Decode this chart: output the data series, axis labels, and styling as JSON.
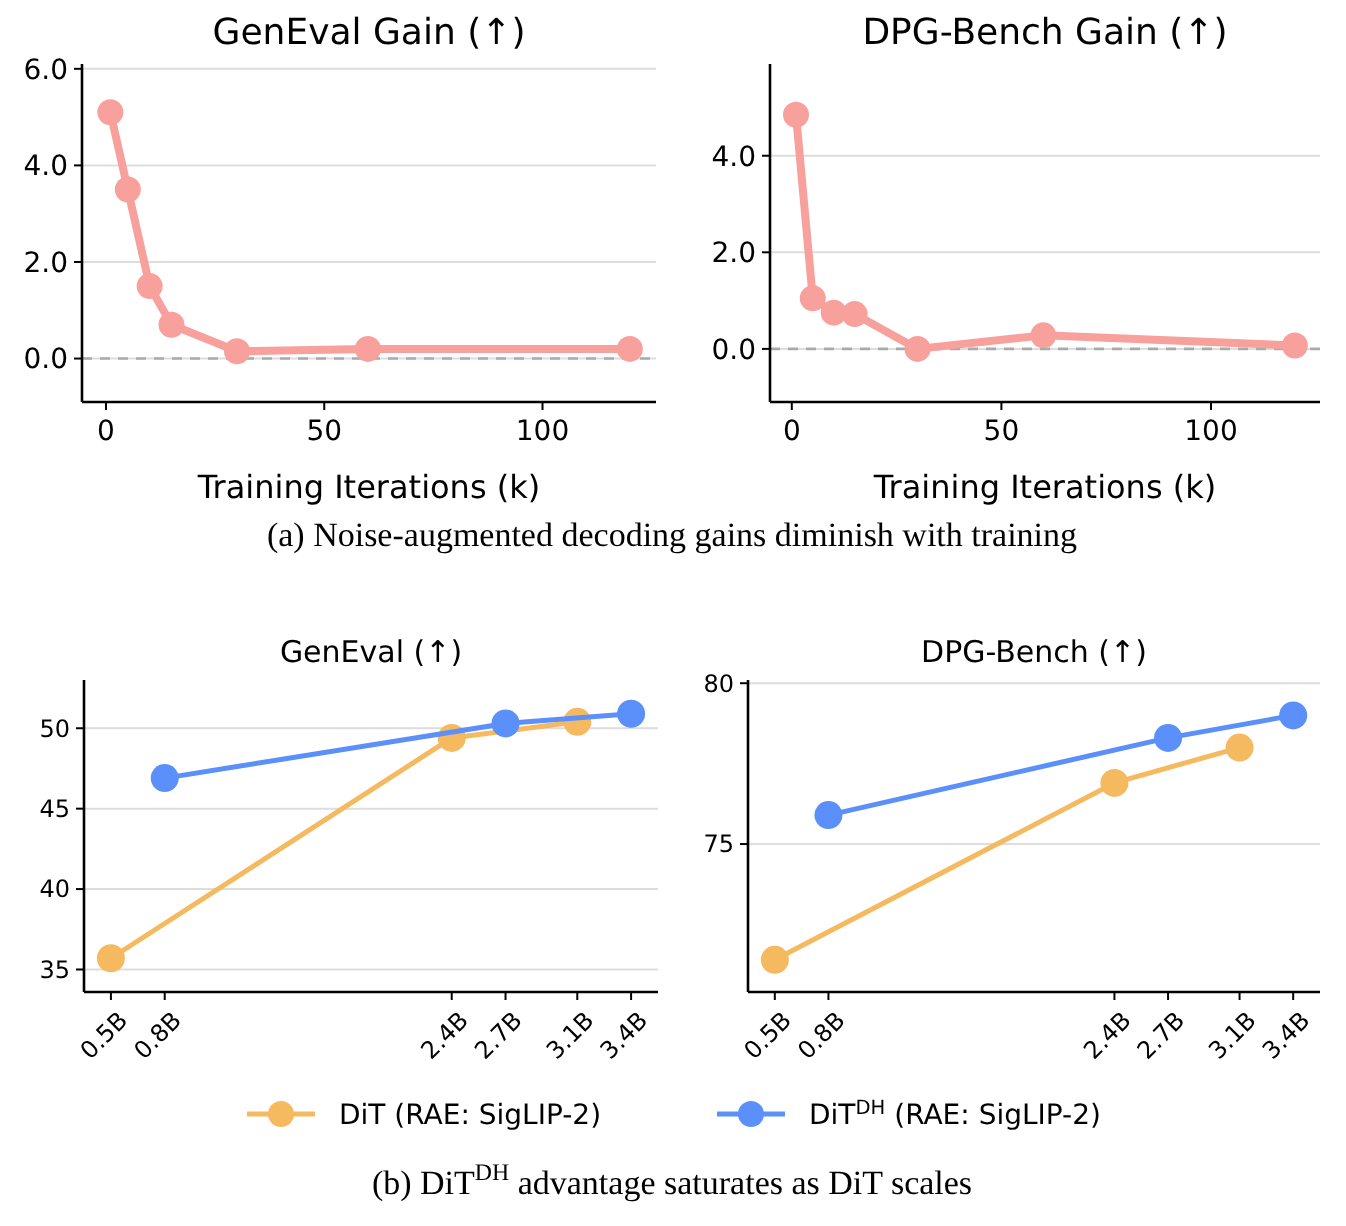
{
  "chart_data": [
    {
      "type": "line",
      "title": "GenEval Gain (↑)",
      "xlabel": "Training Iterations (k)",
      "annotations": [
        "(a) Noise-augmented decoding gains diminish with training"
      ],
      "xlim": [
        -5.5,
        126
      ],
      "xticks": [
        0,
        50,
        100
      ],
      "ylim": [
        -0.9,
        6.1
      ],
      "yticks": [
        {
          "value": 0,
          "label": "0.0"
        },
        {
          "value": 2,
          "label": "2.0"
        },
        {
          "value": 4,
          "label": "4.0"
        },
        {
          "value": 6,
          "label": "6.0"
        }
      ],
      "grid": "y",
      "marker": "circle",
      "line_style": "solid",
      "ref_lines": [
        {
          "axis": "y",
          "value": 0,
          "color": "#aaaaaa",
          "line_style": "dashed"
        }
      ],
      "series": [
        {
          "color": "#f7a09c",
          "x": [
            1,
            5,
            10,
            15,
            30,
            60,
            120
          ],
          "values": [
            5.1,
            3.5,
            1.5,
            0.7,
            0.15,
            0.2,
            0.2
          ]
        }
      ]
    },
    {
      "type": "line",
      "title": "DPG-Bench Gain (↑)",
      "xlabel": "Training Iterations (k)",
      "xlim": [
        -5.2,
        126
      ],
      "xticks": [
        0,
        50,
        100
      ],
      "ylim": [
        -1.1,
        5.9
      ],
      "yticks": [
        {
          "value": 0,
          "label": "0.0"
        },
        {
          "value": 2,
          "label": "2.0"
        },
        {
          "value": 4,
          "label": "4.0"
        }
      ],
      "grid": "y",
      "marker": "circle",
      "line_style": "solid",
      "ref_lines": [
        {
          "axis": "y",
          "value": 0,
          "color": "#aaaaaa",
          "line_style": "dashed"
        }
      ],
      "series": [
        {
          "color": "#f7a09c",
          "x": [
            1,
            5,
            10,
            15,
            30,
            60,
            120
          ],
          "values": [
            4.85,
            1.05,
            0.75,
            0.72,
            0.0,
            0.28,
            0.07
          ]
        }
      ]
    },
    {
      "type": "line",
      "title": "GenEval (↑)",
      "annotations": [
        "(b) DiT$^{DH}$ advantage saturates as DiT scales"
      ],
      "xlim": [
        0.35,
        3.55
      ],
      "xticks": [
        {
          "value": 0.5,
          "label": "0.5B"
        },
        {
          "value": 0.8,
          "label": "0.8B"
        },
        {
          "value": 2.4,
          "label": "2.4B"
        },
        {
          "value": 2.7,
          "label": "2.7B"
        },
        {
          "value": 3.1,
          "label": "3.1B"
        },
        {
          "value": 3.4,
          "label": "3.4B"
        }
      ],
      "ylim": [
        33.6,
        53
      ],
      "yticks": [
        35,
        40,
        45,
        50
      ],
      "grid": "y",
      "marker": "circle",
      "line_style": "solid",
      "legend": "bottom",
      "series": [
        {
          "name": "DiT (RAE: SigLIP-2)",
          "color": "#f5b960",
          "x": [
            0.5,
            2.4,
            3.1
          ],
          "values": [
            35.7,
            49.4,
            50.4
          ]
        },
        {
          "name": "DiT$^{DH}$ (RAE: SigLIP-2)",
          "color": "#5b8ff9",
          "x": [
            0.8,
            2.7,
            3.4
          ],
          "values": [
            46.9,
            50.3,
            50.9
          ]
        }
      ]
    },
    {
      "type": "line",
      "title": "DPG-Bench (↑)",
      "xlim": [
        0.35,
        3.55
      ],
      "xticks": [
        {
          "value": 0.5,
          "label": "0.5B"
        },
        {
          "value": 0.8,
          "label": "0.8B"
        },
        {
          "value": 2.4,
          "label": "2.4B"
        },
        {
          "value": 2.7,
          "label": "2.7B"
        },
        {
          "value": 3.1,
          "label": "3.1B"
        },
        {
          "value": 3.4,
          "label": "3.4B"
        }
      ],
      "ylim": [
        70.4,
        80.1
      ],
      "yticks": [
        75,
        80
      ],
      "grid": "y",
      "marker": "circle",
      "line_style": "solid",
      "series": [
        {
          "color": "#f5b960",
          "x": [
            0.5,
            2.4,
            3.1
          ],
          "values": [
            71.4,
            76.9,
            78.0
          ]
        },
        {
          "color": "#5b8ff9",
          "x": [
            0.8,
            2.7,
            3.4
          ],
          "values": [
            75.9,
            78.3,
            79.0
          ]
        }
      ]
    }
  ]
}
